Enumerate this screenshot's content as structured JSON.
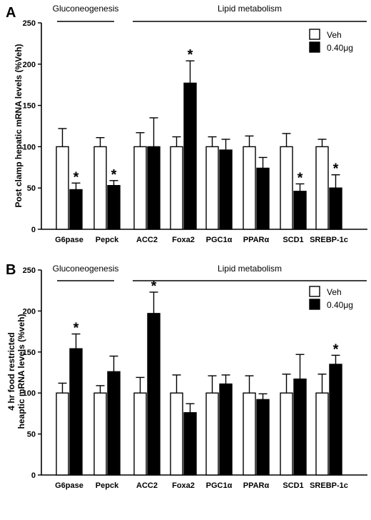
{
  "chart_data": [
    {
      "type": "bar",
      "panel_label": "A",
      "ylabel": "Post clamp hepatic mRNA levels (%Veh)",
      "ylim": [
        0,
        250
      ],
      "yticks": [
        "0",
        "50",
        "100",
        "150",
        "200",
        "250"
      ],
      "categories": [
        "G6pase",
        "Pepck",
        "ACC2",
        "Foxa2",
        "PGC1α",
        "PPARα",
        "SCD1",
        "SREBP-1c"
      ],
      "series": [
        {
          "name": "Veh",
          "color": "#ffffff",
          "values": [
            100,
            100,
            100,
            100,
            100,
            100,
            100,
            100
          ],
          "errors": [
            22,
            11,
            17,
            12,
            12,
            13,
            16,
            9
          ]
        },
        {
          "name": "0.40μg",
          "color": "#000000",
          "values": [
            48,
            53,
            100,
            177,
            96,
            74,
            46,
            50
          ],
          "errors": [
            8,
            6,
            35,
            27,
            13,
            13,
            9,
            16
          ]
        }
      ],
      "significant": [
        [
          false,
          true
        ],
        [
          false,
          true
        ],
        [
          false,
          false
        ],
        [
          false,
          true
        ],
        [
          false,
          false
        ],
        [
          false,
          false
        ],
        [
          false,
          true
        ],
        [
          false,
          true
        ]
      ],
      "marker": "*",
      "groups": [
        {
          "label": "Gluconeogenesis",
          "categories": [
            "G6pase",
            "Pepck"
          ]
        },
        {
          "label": "Lipid metabolism",
          "categories": [
            "ACC2",
            "Foxa2",
            "PGC1α",
            "PPARα",
            "SCD1",
            "SREBP-1c"
          ]
        }
      ],
      "legend_position": "top-right"
    },
    {
      "type": "bar",
      "panel_label": "B",
      "ylabel_lines": [
        "4 hr food restricted",
        "heaptic mRNA levels (%veh)"
      ],
      "ylim": [
        0,
        250
      ],
      "yticks": [
        "0",
        "50",
        "100",
        "150",
        "200",
        "250"
      ],
      "categories": [
        "G6pase",
        "Pepck",
        "ACC2",
        "Foxa2",
        "PGC1α",
        "PPARα",
        "SCD1",
        "SREBP-1c"
      ],
      "series": [
        {
          "name": "Veh",
          "color": "#ffffff",
          "values": [
            100,
            100,
            100,
            100,
            100,
            100,
            100,
            100
          ],
          "errors": [
            12,
            9,
            19,
            22,
            21,
            21,
            23,
            23
          ]
        },
        {
          "name": "0.40μg",
          "color": "#000000",
          "values": [
            154,
            126,
            197,
            76,
            111,
            92,
            117,
            135
          ],
          "errors": [
            18,
            19,
            26,
            11,
            11,
            7,
            30,
            11
          ]
        }
      ],
      "significant": [
        [
          false,
          true
        ],
        [
          false,
          false
        ],
        [
          false,
          true
        ],
        [
          false,
          false
        ],
        [
          false,
          false
        ],
        [
          false,
          false
        ],
        [
          false,
          false
        ],
        [
          false,
          true
        ]
      ],
      "marker": "*",
      "groups": [
        {
          "label": "Gluconeogenesis",
          "categories": [
            "G6pase",
            "Pepck"
          ]
        },
        {
          "label": "Lipid metabolism",
          "categories": [
            "ACC2",
            "Foxa2",
            "PGC1α",
            "PPARα",
            "SCD1",
            "SREBP-1c"
          ]
        }
      ],
      "legend_position": "top-right"
    }
  ]
}
